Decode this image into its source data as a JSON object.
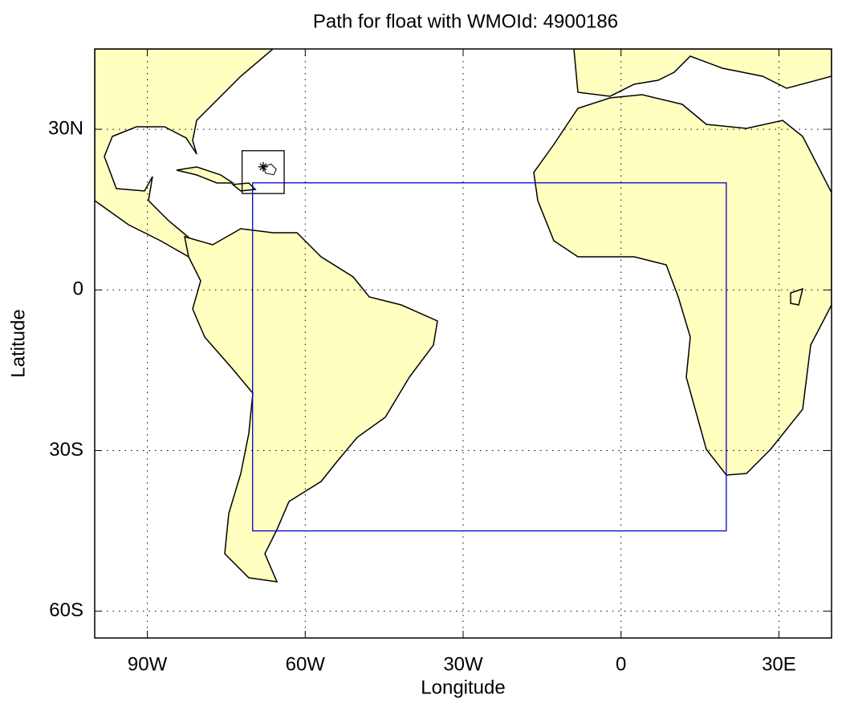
{
  "chart_data": {
    "type": "map",
    "title": "Path for float with WMOId: 4900186",
    "xlabel": "Longitude",
    "ylabel": "Latitude",
    "xlim": [
      -100,
      40
    ],
    "ylim": [
      -65,
      45
    ],
    "xticks": [
      {
        "value": -90,
        "label": "90W"
      },
      {
        "value": -60,
        "label": "60W"
      },
      {
        "value": -30,
        "label": "30W"
      },
      0,
      {
        "value": 30,
        "label": "30E"
      }
    ],
    "yticks": [
      {
        "value": 30,
        "label": "30N"
      },
      0,
      {
        "value": -30,
        "label": "30S"
      },
      {
        "value": -60,
        "label": "60S"
      }
    ],
    "grid": true,
    "region": {
      "lon": [
        -70,
        20
      ],
      "lat": [
        -45,
        20
      ],
      "color": "#0000cc"
    },
    "float_box": {
      "lon": [
        -72,
        -64
      ],
      "lat": [
        18,
        26
      ],
      "color": "#000000"
    },
    "float_track": {
      "lon": [
        -68,
        -66.5,
        -65.5,
        -66,
        -67.5,
        -68
      ],
      "lat": [
        23,
        23.5,
        22.5,
        21.5,
        21.8,
        23
      ]
    },
    "float_position": {
      "lon": -68,
      "lat": 23
    }
  }
}
